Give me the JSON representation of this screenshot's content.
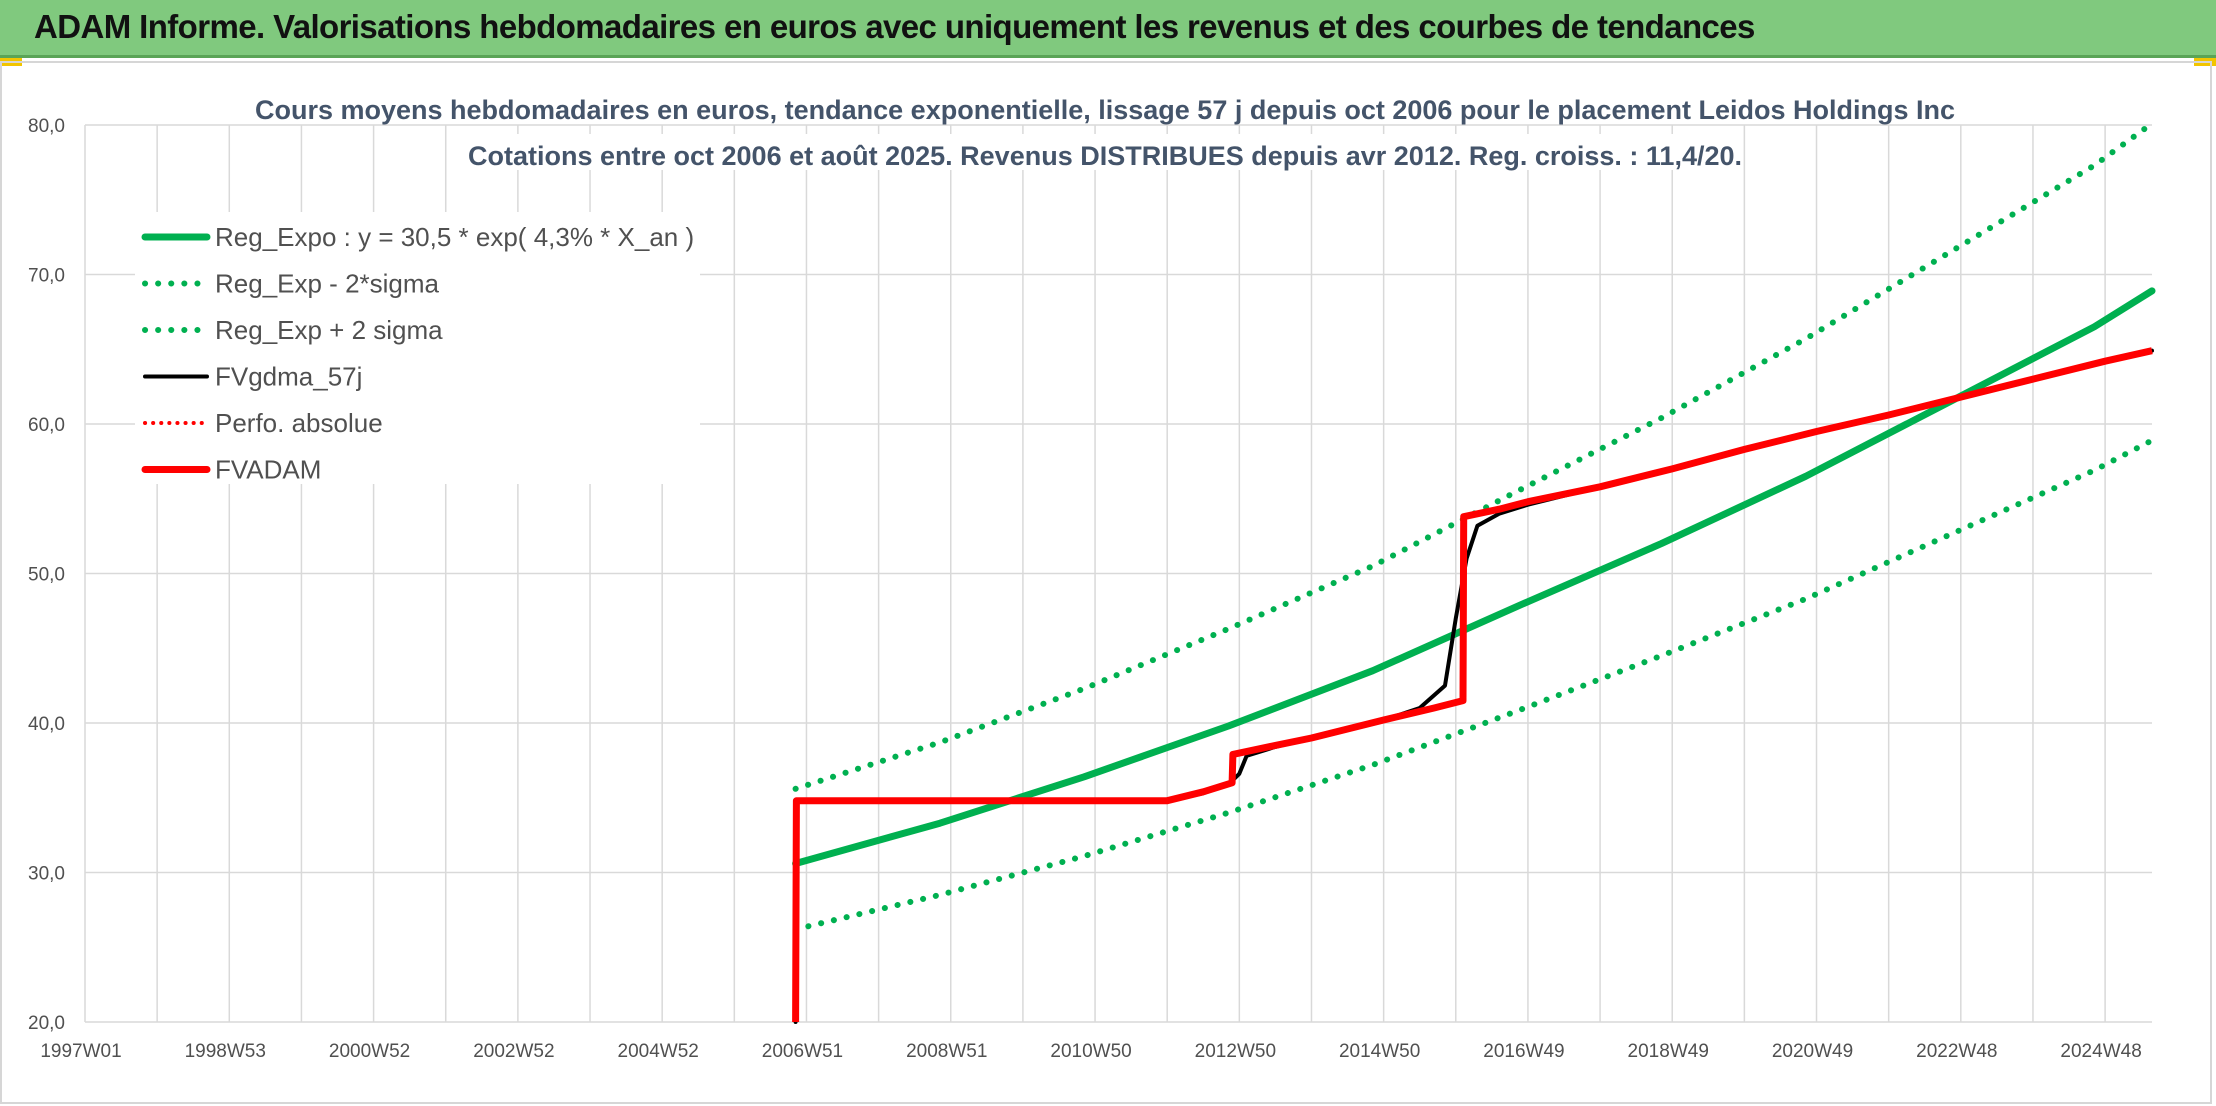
{
  "header": {
    "title": "ADAM Informe. Valorisations hebdomadaires en euros avec uniquement les revenus et des courbes de tendances"
  },
  "colors": {
    "banner": "#80c97e",
    "trend": "#00b050",
    "fvgdma": "#000000",
    "fvadam": "#ff0000",
    "grid": "#d9d9d9"
  },
  "chart_data": {
    "type": "line",
    "title": [
      "Cours moyens hebdomadaires en euros, tendance exponentielle, lissage 57 j depuis oct 2006 pour le placement Leidos Holdings Inc",
      "Cotations entre oct 2006 et août 2025. Revenus DISTRIBUES depuis avr 2012. Reg. croiss. : 11,4/20."
    ],
    "xlabel": "",
    "ylabel": "",
    "x_range": [
      1997.0,
      2025.65
    ],
    "ylim": [
      20,
      80
    ],
    "y_ticks": [
      "20,0",
      "30,0",
      "40,0",
      "50,0",
      "60,0",
      "70,0",
      "80,0"
    ],
    "x_ticks": [
      {
        "label": "1997W01",
        "x": 1997.0
      },
      {
        "label": "1998W53",
        "x": 1999.0
      },
      {
        "label": "2000W52",
        "x": 2001.0
      },
      {
        "label": "2002W52",
        "x": 2003.0
      },
      {
        "label": "2004W52",
        "x": 2005.0
      },
      {
        "label": "2006W51",
        "x": 2007.0
      },
      {
        "label": "2008W51",
        "x": 2009.0
      },
      {
        "label": "2010W50",
        "x": 2011.0
      },
      {
        "label": "2012W50",
        "x": 2013.0
      },
      {
        "label": "2014W50",
        "x": 2015.0
      },
      {
        "label": "2016W49",
        "x": 2017.0
      },
      {
        "label": "2018W49",
        "x": 2019.0
      },
      {
        "label": "2020W49",
        "x": 2021.0
      },
      {
        "label": "2022W48",
        "x": 2023.0
      },
      {
        "label": "2024W48",
        "x": 2025.0
      }
    ],
    "grid": true,
    "legend_position": "top-left",
    "series": [
      {
        "name": "Reg_Expo : y = 30,5 * exp( 4,3% *  X_an )",
        "style": "solid-green",
        "x": [
          2006.85,
          2008.85,
          2010.85,
          2012.85,
          2014.85,
          2016.85,
          2018.85,
          2020.85,
          2022.85,
          2024.85,
          2025.65
        ],
        "values": [
          30.6,
          33.3,
          36.4,
          39.8,
          43.5,
          47.8,
          52.0,
          56.5,
          61.5,
          66.5,
          68.9
        ]
      },
      {
        "name": "Reg_Exp - 2*sigma",
        "style": "dotted-green",
        "x": [
          2006.85,
          2008.85,
          2010.85,
          2012.85,
          2014.85,
          2016.85,
          2018.85,
          2020.85,
          2022.85,
          2024.85,
          2025.65
        ],
        "values": [
          26.2,
          28.5,
          31.1,
          34.0,
          37.2,
          40.8,
          44.5,
          48.3,
          52.6,
          56.9,
          58.9
        ]
      },
      {
        "name": "Reg_Exp + 2 sigma",
        "style": "dotted-green",
        "x": [
          2006.85,
          2008.85,
          2010.85,
          2012.85,
          2014.85,
          2016.85,
          2018.85,
          2020.85,
          2022.85,
          2024.85,
          2025.65
        ],
        "values": [
          35.6,
          38.7,
          42.3,
          46.3,
          50.5,
          55.5,
          60.4,
          65.7,
          71.5,
          77.3,
          80.1
        ]
      },
      {
        "name": "FVgdma_57j",
        "style": "solid-black",
        "x": [
          2006.85,
          2006.86,
          2012.0,
          2012.5,
          2012.85,
          2013.0,
          2013.1,
          2013.5,
          2014.0,
          2015.0,
          2015.5,
          2015.85,
          2016.0,
          2016.15,
          2016.3,
          2016.6,
          2017.0,
          2018.0,
          2019.0,
          2020.0,
          2021.0,
          2022.0,
          2023.0,
          2024.0,
          2025.0,
          2025.65
        ],
        "values": [
          20.0,
          34.8,
          34.8,
          35.3,
          35.9,
          36.6,
          37.8,
          38.4,
          39.0,
          40.2,
          41.0,
          42.5,
          47.0,
          51.0,
          53.2,
          54.0,
          54.6,
          55.8,
          57.0,
          58.3,
          59.5,
          60.6,
          61.8,
          63.0,
          64.2,
          64.9
        ]
      },
      {
        "name": "Perfo. absolue",
        "style": "dotted-red",
        "x": [],
        "values": []
      },
      {
        "name": "FVADAM",
        "style": "solid-red-step",
        "x": [
          2006.85,
          2006.86,
          2012.0,
          2012.5,
          2012.9,
          2012.91,
          2013.5,
          2014.0,
          2015.0,
          2015.7,
          2016.1,
          2016.11,
          2016.6,
          2017.0,
          2018.0,
          2019.0,
          2020.0,
          2021.0,
          2022.0,
          2023.0,
          2024.0,
          2025.0,
          2025.65
        ],
        "values": [
          20.0,
          34.8,
          34.8,
          35.4,
          36.0,
          37.9,
          38.5,
          39.0,
          40.2,
          41.0,
          41.5,
          53.8,
          54.3,
          54.8,
          55.8,
          57.0,
          58.3,
          59.5,
          60.6,
          61.8,
          63.0,
          64.2,
          64.9
        ]
      }
    ]
  }
}
